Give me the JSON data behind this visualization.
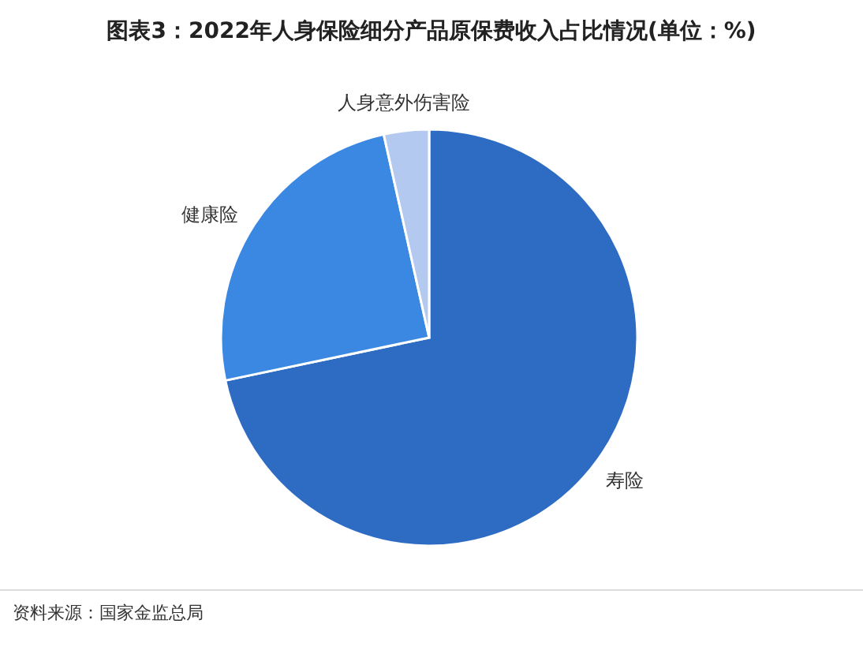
{
  "chart_data": {
    "type": "pie",
    "title": "图表3：2022年人身保险细分产品原保费收入占比情况(单位：%)",
    "categories": [
      "寿险",
      "健康险",
      "人身意外伤害险"
    ],
    "values": [
      71.7,
      24.8,
      3.5
    ],
    "colors": [
      "#2e6cc4",
      "#3b88e3",
      "#b3c9ef"
    ],
    "annotations": [
      "资料来源：国家金监总局"
    ]
  }
}
